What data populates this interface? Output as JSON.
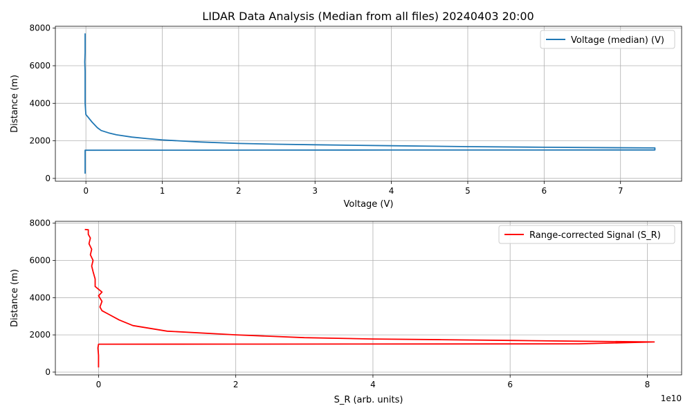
{
  "figure": {
    "title": "LIDAR Data Analysis (Median from all files) 20240403 20:00"
  },
  "chart_data": [
    {
      "type": "line",
      "title": "LIDAR Data Analysis (Median from all files) 20240403 20:00",
      "xlabel": "Voltage (V)",
      "ylabel": "Distance (m)",
      "xlim": [
        -0.4,
        7.8
      ],
      "ylim": [
        -150,
        8100
      ],
      "xticks": [
        0,
        1,
        2,
        3,
        4,
        5,
        6,
        7
      ],
      "xtick_labels": [
        "0",
        "1",
        "2",
        "3",
        "4",
        "5",
        "6",
        "7"
      ],
      "yticks": [
        0,
        2000,
        4000,
        6000,
        8000
      ],
      "ytick_labels": [
        "0",
        "2000",
        "4000",
        "6000",
        "8000"
      ],
      "grid": true,
      "legend_position": "top-right",
      "series": [
        {
          "name": "Voltage (median) (V)",
          "color": "#1f77b4",
          "points": [
            [
              -0.01,
              250
            ],
            [
              -0.01,
              800
            ],
            [
              -0.01,
              1200
            ],
            [
              -0.01,
              1500
            ],
            [
              1.5,
              1505
            ],
            [
              4.0,
              1510
            ],
            [
              7.45,
              1515
            ],
            [
              7.45,
              1560
            ],
            [
              7.45,
              1620
            ],
            [
              6.0,
              1660
            ],
            [
              5.0,
              1690
            ],
            [
              4.0,
              1740
            ],
            [
              3.0,
              1790
            ],
            [
              2.5,
              1820
            ],
            [
              2.0,
              1860
            ],
            [
              1.5,
              1940
            ],
            [
              1.0,
              2050
            ],
            [
              0.8,
              2120
            ],
            [
              0.6,
              2200
            ],
            [
              0.4,
              2320
            ],
            [
              0.3,
              2420
            ],
            [
              0.2,
              2550
            ],
            [
              0.15,
              2700
            ],
            [
              0.08,
              3000
            ],
            [
              0.03,
              3250
            ],
            [
              0.0,
              3400
            ],
            [
              -0.01,
              4000
            ],
            [
              -0.01,
              5000
            ],
            [
              -0.01,
              5700
            ],
            [
              -0.015,
              6200
            ],
            [
              -0.01,
              6700
            ],
            [
              -0.01,
              7200
            ],
            [
              -0.01,
              7720
            ]
          ]
        }
      ]
    },
    {
      "type": "line",
      "title": "",
      "xlabel": "S_R (arb. units)",
      "ylabel": "Distance (m)",
      "x_scale_label": "1e10",
      "xlim": [
        -0.63,
        8.5
      ],
      "ylim": [
        -150,
        8100
      ],
      "xticks": [
        0,
        2,
        4,
        6,
        8
      ],
      "xtick_labels": [
        "0",
        "2",
        "4",
        "6",
        "8"
      ],
      "yticks": [
        0,
        2000,
        4000,
        6000,
        8000
      ],
      "ytick_labels": [
        "0",
        "2000",
        "4000",
        "6000",
        "8000"
      ],
      "grid": true,
      "legend_position": "top-right",
      "series": [
        {
          "name": "Range-corrected Signal (S_R)",
          "color": "#ff0000",
          "points": [
            [
              0.0,
              250
            ],
            [
              0.0,
              900
            ],
            [
              -0.01,
              1300
            ],
            [
              0.0,
              1500
            ],
            [
              2.0,
              1505
            ],
            [
              5.0,
              1510
            ],
            [
              7.0,
              1520
            ],
            [
              8.1,
              1620
            ],
            [
              7.0,
              1660
            ],
            [
              6.0,
              1700
            ],
            [
              5.0,
              1740
            ],
            [
              4.0,
              1780
            ],
            [
              3.0,
              1850
            ],
            [
              2.0,
              2000
            ],
            [
              1.0,
              2200
            ],
            [
              0.5,
              2500
            ],
            [
              0.3,
              2800
            ],
            [
              0.15,
              3100
            ],
            [
              0.05,
              3300
            ],
            [
              0.02,
              3500
            ],
            [
              0.05,
              3800
            ],
            [
              0.0,
              4100
            ],
            [
              0.05,
              4300
            ],
            [
              -0.05,
              4600
            ],
            [
              -0.05,
              5000
            ],
            [
              -0.08,
              5400
            ],
            [
              -0.1,
              5700
            ],
            [
              -0.08,
              6000
            ],
            [
              -0.12,
              6300
            ],
            [
              -0.1,
              6600
            ],
            [
              -0.14,
              6900
            ],
            [
              -0.12,
              7200
            ],
            [
              -0.15,
              7400
            ],
            [
              -0.15,
              7650
            ],
            [
              -0.2,
              7660
            ]
          ]
        }
      ]
    }
  ]
}
